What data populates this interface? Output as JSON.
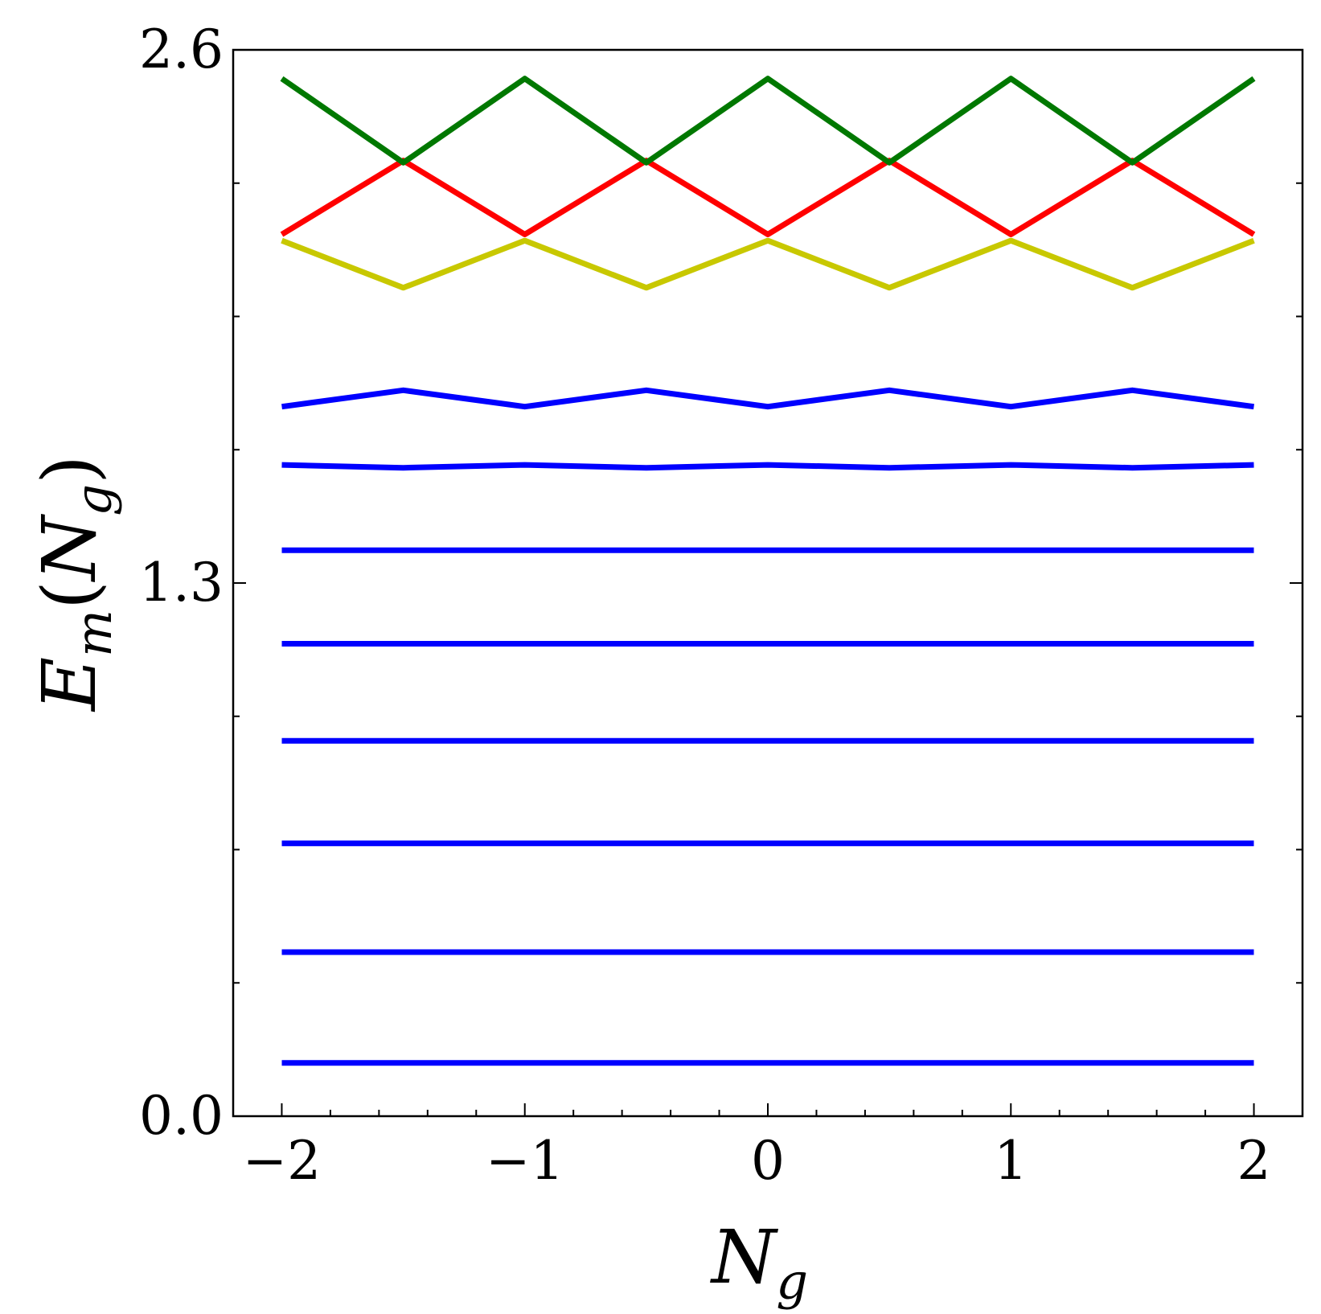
{
  "chart_data": {
    "type": "line",
    "xlabel": {
      "main": "N",
      "sub": "g"
    },
    "ylabel": {
      "main": "E",
      "sub": "m",
      "arg_main": "N",
      "arg_sub": "g"
    },
    "xlim": [
      -2.2,
      2.2
    ],
    "ylim": [
      0.0,
      2.6
    ],
    "xticks": [
      -2,
      -1,
      0,
      1,
      2
    ],
    "xtick_labels": [
      "−2",
      "−1",
      "0",
      "1",
      "2"
    ],
    "yticks": [
      0.0,
      1.3,
      2.6
    ],
    "ytick_labels": [
      "0.0",
      "1.3",
      "2.6"
    ],
    "grid": false,
    "legend": "none",
    "series": [
      {
        "color": "#0000ff",
        "x": [
          -2,
          -1,
          0,
          1,
          2
        ],
        "y": [
          0.13,
          0.13,
          0.13,
          0.13,
          0.13
        ]
      },
      {
        "color": "#0000ff",
        "x": [
          -2,
          -1,
          0,
          1,
          2
        ],
        "y": [
          0.4,
          0.4,
          0.4,
          0.4,
          0.4
        ]
      },
      {
        "color": "#0000ff",
        "x": [
          -2,
          -1,
          0,
          1,
          2
        ],
        "y": [
          0.665,
          0.665,
          0.665,
          0.665,
          0.665
        ]
      },
      {
        "color": "#0000ff",
        "x": [
          -2,
          -1,
          0,
          1,
          2
        ],
        "y": [
          0.915,
          0.915,
          0.915,
          0.915,
          0.915
        ]
      },
      {
        "color": "#0000ff",
        "x": [
          -2,
          -1,
          0,
          1,
          2
        ],
        "y": [
          1.152,
          1.152,
          1.152,
          1.152,
          1.152
        ]
      },
      {
        "color": "#0000ff",
        "x": [
          -2,
          -1,
          0,
          1,
          2
        ],
        "y": [
          1.38,
          1.38,
          1.38,
          1.38,
          1.38
        ]
      },
      {
        "color": "#0000ff",
        "x": [
          -2,
          -1.5,
          -1,
          -0.5,
          0,
          0.5,
          1,
          1.5,
          2
        ],
        "y": [
          1.588,
          1.581,
          1.588,
          1.581,
          1.588,
          1.581,
          1.588,
          1.581,
          1.588
        ]
      },
      {
        "color": "#0000ff",
        "x": [
          -2,
          -1.5,
          -1,
          -0.5,
          0,
          0.5,
          1,
          1.5,
          2
        ],
        "y": [
          1.73,
          1.77,
          1.73,
          1.77,
          1.73,
          1.77,
          1.73,
          1.77,
          1.73
        ]
      },
      {
        "color": "#c8c800",
        "x": [
          -2,
          -1.5,
          -1,
          -0.5,
          0,
          0.5,
          1,
          1.5,
          2
        ],
        "y": [
          2.135,
          2.02,
          2.135,
          2.02,
          2.135,
          2.02,
          2.135,
          2.02,
          2.135
        ]
      },
      {
        "color": "#ff0000",
        "x": [
          -2,
          -1.5,
          -1,
          -0.5,
          0,
          0.5,
          1,
          1.5,
          2
        ],
        "y": [
          2.15,
          2.33,
          2.15,
          2.33,
          2.15,
          2.33,
          2.15,
          2.33,
          2.15
        ]
      },
      {
        "color": "#007800",
        "x": [
          -2,
          -1.5,
          -1,
          -0.5,
          0,
          0.5,
          1,
          1.5,
          2
        ],
        "y": [
          2.53,
          2.325,
          2.53,
          2.325,
          2.53,
          2.325,
          2.53,
          2.325,
          2.53
        ]
      }
    ]
  }
}
